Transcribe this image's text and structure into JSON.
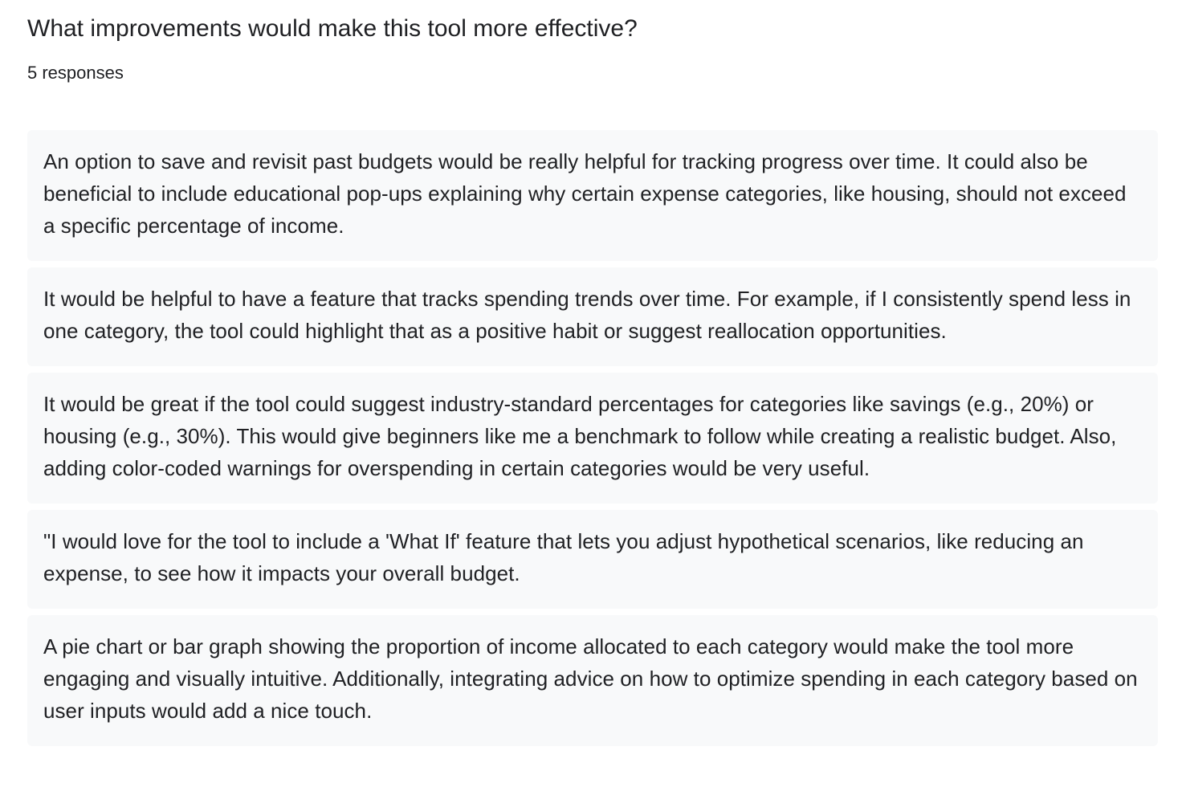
{
  "question": {
    "title": "What improvements would make this tool more effective?",
    "response_count": "5 responses"
  },
  "responses": [
    {
      "text": "An option to save and revisit past budgets would be really helpful for tracking progress over time. It could also be beneficial to include educational pop-ups explaining why certain expense categories, like housing, should not exceed a specific percentage of income."
    },
    {
      "text": "It would be helpful to have a feature that tracks spending trends over time. For example, if I consistently spend less in one category, the tool could highlight that as a positive habit or suggest reallocation opportunities."
    },
    {
      "text": "It would be great if the tool could suggest industry-standard percentages for categories like savings (e.g., 20%) or housing (e.g., 30%). This would give beginners like me a benchmark to follow while creating a realistic budget. Also, adding color-coded warnings for overspending in certain categories would be very useful."
    },
    {
      "text": "\"I would love for the tool to include a 'What If' feature that lets you adjust hypothetical scenarios, like reducing an expense, to see how it impacts your overall budget."
    },
    {
      "text": "A pie chart or bar graph showing the proportion of income allocated to each category would make the tool more engaging and visually intuitive. Additionally, integrating advice on how to optimize spending in each category based on user inputs would add a nice touch."
    }
  ],
  "colors": {
    "card_background": "#f8f9fa",
    "text": "#202124"
  }
}
